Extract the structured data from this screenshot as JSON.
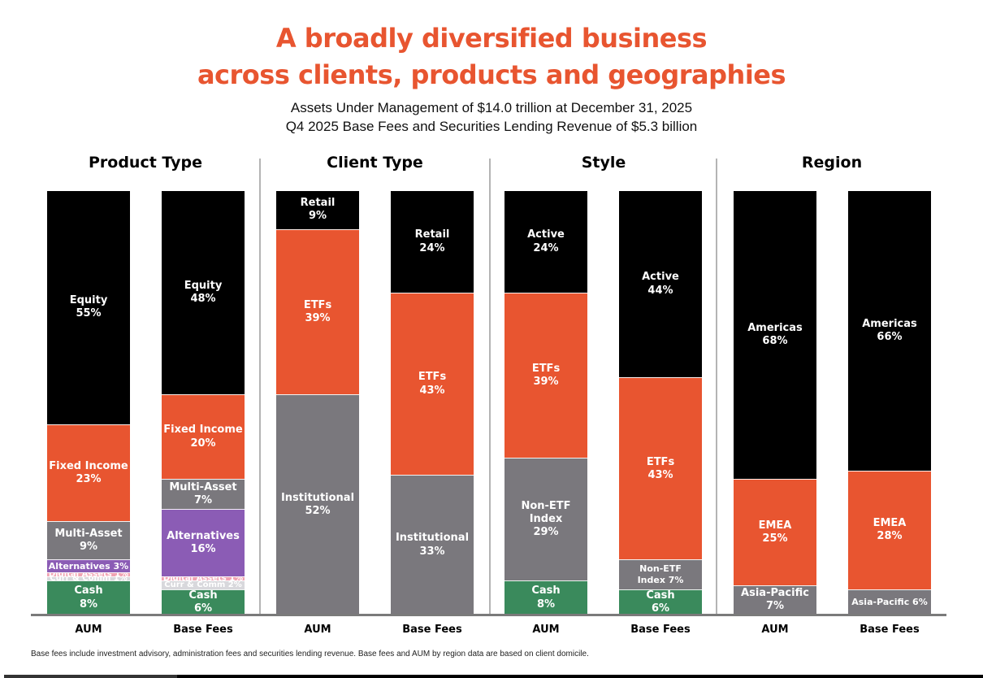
{
  "header": {
    "title_line1": "A broadly diversified business",
    "title_line2": "across clients, products and geographies",
    "subtitle_line1": "Assets Under Management of $14.0 trillion at December 31, 2025",
    "subtitle_line2": "Q4 2025 Base Fees and Securities Lending Revenue of $5.3 billion"
  },
  "footnote": "Base fees include investment advisory, administration fees and securities lending revenue. Base fees and AUM by region data are based on client domicile.",
  "colors": {
    "title": "#e85530",
    "black": "#000000",
    "orange": "#e85530",
    "gray": "#7a787d",
    "purple": "#8b5cb5",
    "pink": "#f0a3b2",
    "lightgray": "#d8d8dc",
    "green": "#3a8a5c"
  },
  "chart_data": [
    {
      "type": "bar",
      "stacked": true,
      "title": "Product Type",
      "categories": [
        "AUM",
        "Base Fees"
      ],
      "ylim": [
        0,
        100
      ],
      "unit": "%",
      "series_order": "bottom-to-top",
      "bars": [
        {
          "category": "AUM",
          "segments": [
            {
              "name": "Cash",
              "value": 8,
              "label": "Cash\n8%",
              "color": "green",
              "size": "lg"
            },
            {
              "name": "Curr & Comm",
              "value": 1,
              "label": "Curr & Comm 1%",
              "color": "lightgray",
              "size": "xs"
            },
            {
              "name": "Digital Assets",
              "value": 1,
              "label": "Digital Assets 1%",
              "color": "pink",
              "size": "xs"
            },
            {
              "name": "Alternatives",
              "value": 3,
              "label": "Alternatives 3%",
              "color": "purple",
              "size": "sm"
            },
            {
              "name": "Multi-Asset",
              "value": 9,
              "label": "Multi-Asset\n9%",
              "color": "gray",
              "size": "lg"
            },
            {
              "name": "Fixed Income",
              "value": 23,
              "label": "Fixed Income\n23%",
              "color": "orange",
              "size": "lg"
            },
            {
              "name": "Equity",
              "value": 55,
              "label": "Equity\n55%",
              "color": "black",
              "size": "lg"
            }
          ]
        },
        {
          "category": "Base Fees",
          "segments": [
            {
              "name": "Cash",
              "value": 6,
              "label": "Cash\n6%",
              "color": "green",
              "size": "lg"
            },
            {
              "name": "Curr & Comm",
              "value": 2,
              "label": "Curr & Comm 2%",
              "color": "lightgray",
              "size": "xs"
            },
            {
              "name": "Digital Assets",
              "value": 1,
              "label": "Digital Assets 1%",
              "color": "pink",
              "size": "xs"
            },
            {
              "name": "Alternatives",
              "value": 16,
              "label": "Alternatives\n16%",
              "color": "purple",
              "size": "lg"
            },
            {
              "name": "Multi-Asset",
              "value": 7,
              "label": "Multi-Asset\n7%",
              "color": "gray",
              "size": "lg"
            },
            {
              "name": "Fixed Income",
              "value": 20,
              "label": "Fixed Income\n20%",
              "color": "orange",
              "size": "lg"
            },
            {
              "name": "Equity",
              "value": 48,
              "label": "Equity\n48%",
              "color": "black",
              "size": "lg"
            }
          ]
        }
      ]
    },
    {
      "type": "bar",
      "stacked": true,
      "title": "Client Type",
      "categories": [
        "AUM",
        "Base Fees"
      ],
      "ylim": [
        0,
        100
      ],
      "unit": "%",
      "series_order": "bottom-to-top",
      "bars": [
        {
          "category": "AUM",
          "segments": [
            {
              "name": "Institutional",
              "value": 52,
              "label": "Institutional\n52%",
              "color": "gray",
              "size": "lg"
            },
            {
              "name": "ETFs",
              "value": 39,
              "label": "ETFs\n39%",
              "color": "orange",
              "size": "lg"
            },
            {
              "name": "Retail",
              "value": 9,
              "label": "Retail\n9%",
              "color": "black",
              "size": "lg"
            }
          ]
        },
        {
          "category": "Base Fees",
          "segments": [
            {
              "name": "Institutional",
              "value": 33,
              "label": "Institutional\n33%",
              "color": "gray",
              "size": "lg"
            },
            {
              "name": "ETFs",
              "value": 43,
              "label": "ETFs\n43%",
              "color": "orange",
              "size": "lg"
            },
            {
              "name": "Retail",
              "value": 24,
              "label": "Retail\n24%",
              "color": "black",
              "size": "lg"
            }
          ]
        }
      ]
    },
    {
      "type": "bar",
      "stacked": true,
      "title": "Style",
      "categories": [
        "AUM",
        "Base Fees"
      ],
      "ylim": [
        0,
        100
      ],
      "unit": "%",
      "series_order": "bottom-to-top",
      "bars": [
        {
          "category": "AUM",
          "segments": [
            {
              "name": "Cash",
              "value": 8,
              "label": "Cash\n8%",
              "color": "green",
              "size": "lg"
            },
            {
              "name": "Non-ETF Index",
              "value": 29,
              "label": "Non-ETF\nIndex\n29%",
              "color": "gray",
              "size": "lg"
            },
            {
              "name": "ETFs",
              "value": 39,
              "label": "ETFs\n39%",
              "color": "orange",
              "size": "lg"
            },
            {
              "name": "Active",
              "value": 24,
              "label": "Active\n24%",
              "color": "black",
              "size": "lg"
            }
          ]
        },
        {
          "category": "Base Fees",
          "segments": [
            {
              "name": "Cash",
              "value": 6,
              "label": "Cash\n6%",
              "color": "green",
              "size": "lg"
            },
            {
              "name": "Non-ETF Index",
              "value": 7,
              "label": "Non-ETF\nIndex 7%",
              "color": "gray",
              "size": "sm"
            },
            {
              "name": "ETFs",
              "value": 43,
              "label": "ETFs\n43%",
              "color": "orange",
              "size": "lg"
            },
            {
              "name": "Active",
              "value": 44,
              "label": "Active\n44%",
              "color": "black",
              "size": "lg"
            }
          ]
        }
      ]
    },
    {
      "type": "bar",
      "stacked": true,
      "title": "Region",
      "categories": [
        "AUM",
        "Base Fees"
      ],
      "ylim": [
        0,
        100
      ],
      "unit": "%",
      "series_order": "bottom-to-top",
      "bars": [
        {
          "category": "AUM",
          "segments": [
            {
              "name": "Asia-Pacific",
              "value": 7,
              "label": "Asia-Pacific\n7%",
              "color": "gray",
              "size": "lg"
            },
            {
              "name": "EMEA",
              "value": 25,
              "label": "EMEA\n25%",
              "color": "orange",
              "size": "lg"
            },
            {
              "name": "Americas",
              "value": 68,
              "label": "Americas\n68%",
              "color": "black",
              "size": "lg"
            }
          ]
        },
        {
          "category": "Base Fees",
          "segments": [
            {
              "name": "Asia-Pacific",
              "value": 6,
              "label": "Asia-Pacific 6%",
              "color": "gray",
              "size": "sm"
            },
            {
              "name": "EMEA",
              "value": 28,
              "label": "EMEA\n28%",
              "color": "orange",
              "size": "lg"
            },
            {
              "name": "Americas",
              "value": 66,
              "label": "Americas\n66%",
              "color": "black",
              "size": "lg"
            }
          ]
        }
      ]
    }
  ]
}
